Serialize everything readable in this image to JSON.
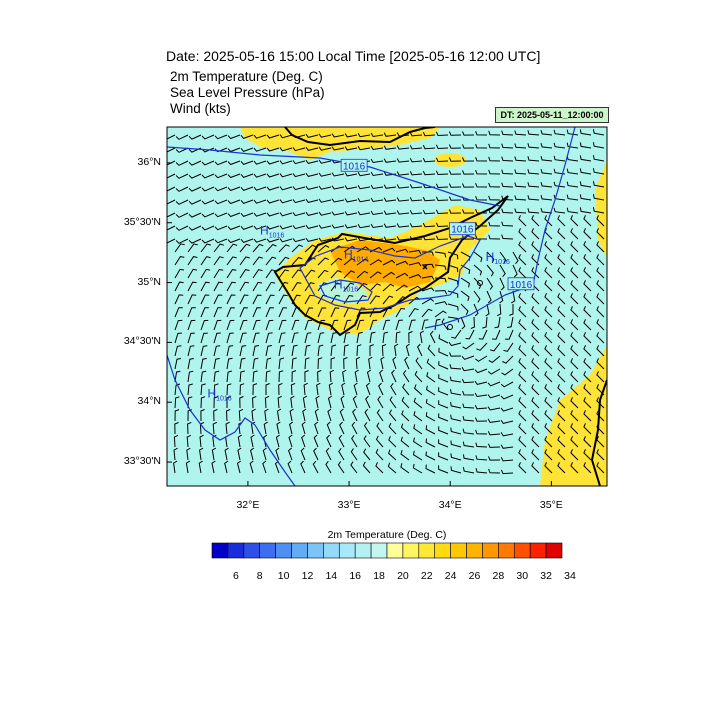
{
  "title": "Date: 2025-05-16  15:00 Local Time [2025-05-16  12:00 UTC]",
  "subtitles": [
    "2m Temperature (Deg. C)",
    "Sea Level Pressure   (hPa)",
    "Wind   (kts)"
  ],
  "dt_label": "DT: 2025-05-11_12:00:00",
  "map": {
    "lon_range": [
      31.2,
      35.55
    ],
    "lat_range": [
      33.3,
      36.3
    ],
    "lat_ticks": [
      {
        "value": 36.0,
        "label": "36°N"
      },
      {
        "value": 35.5,
        "label": "35°30'N"
      },
      {
        "value": 35.0,
        "label": "35°N"
      },
      {
        "value": 34.5,
        "label": "34°30'N"
      },
      {
        "value": 34.0,
        "label": "34°N"
      },
      {
        "value": 33.5,
        "label": "33°30'N"
      }
    ],
    "lon_ticks": [
      {
        "value": 32.0,
        "label": "32°E"
      },
      {
        "value": 33.0,
        "label": "33°E"
      },
      {
        "value": 34.0,
        "label": "34°E"
      },
      {
        "value": 35.0,
        "label": "35°E"
      }
    ],
    "pressure_labels": [
      {
        "text": "1016",
        "lon": 33.05,
        "lat": 35.98
      },
      {
        "text": "1016",
        "lon": 34.12,
        "lat": 35.45
      },
      {
        "text": "1016",
        "lon": 34.7,
        "lat": 34.99
      }
    ],
    "highs": [
      {
        "letter": "H",
        "value": "1016",
        "lon": 32.12,
        "lat": 35.4
      },
      {
        "letter": "H",
        "value": "1014",
        "lon": 32.95,
        "lat": 35.2
      },
      {
        "letter": "H",
        "value": "1016",
        "lon": 32.85,
        "lat": 34.95
      },
      {
        "letter": "H",
        "value": "1016",
        "lon": 34.35,
        "lat": 35.18
      },
      {
        "letter": "H",
        "value": "1016",
        "lon": 31.6,
        "lat": 34.04
      }
    ],
    "colors": {
      "sea": "#b0f4ee",
      "land_warm": "#ffe437",
      "land_hot": "#ffab00",
      "isobar": "#1a35cc"
    }
  },
  "colorbar": {
    "title": "2m Temperature (Deg. C)",
    "colors": [
      "#0000c8",
      "#1a2ddc",
      "#2d50e8",
      "#3d6ef0",
      "#4f8ff4",
      "#64abf6",
      "#7cc4f8",
      "#94d9fa",
      "#a7e9f8",
      "#b4f2f2",
      "#c2f6ee",
      "#ffff9a",
      "#fff560",
      "#ffe937",
      "#ffdc10",
      "#ffc800",
      "#ffb400",
      "#ff9800",
      "#ff7a00",
      "#ff5000",
      "#ff2000",
      "#e00000"
    ],
    "labels": [
      "6",
      "8",
      "10",
      "12",
      "14",
      "16",
      "18",
      "20",
      "22",
      "24",
      "26",
      "28",
      "30",
      "32",
      "34"
    ]
  }
}
